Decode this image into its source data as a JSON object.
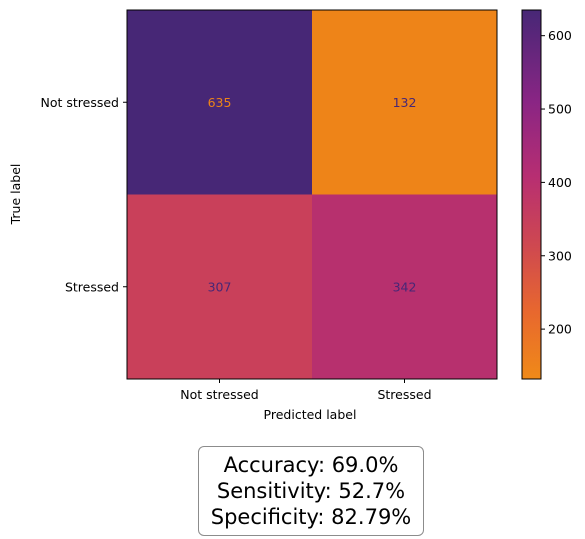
{
  "chart_data": {
    "type": "heatmap",
    "title": "",
    "xlabel": "Predicted label",
    "ylabel": "True label",
    "x_categories": [
      "Not stressed",
      "Stressed"
    ],
    "y_categories": [
      "Not stressed",
      "Stressed"
    ],
    "matrix": [
      [
        635,
        132
      ],
      [
        307,
        342
      ]
    ],
    "colormap": "inferno-like (orange low to dark purple high)",
    "colorbar": {
      "range": [
        132,
        635
      ],
      "ticks": [
        200,
        300,
        400,
        500,
        600
      ],
      "tick_labels": [
        "200",
        "300",
        "400",
        "500",
        "600"
      ]
    },
    "grid": false
  },
  "metrics": {
    "accuracy": "Accuracy: 69.0%",
    "sensitivity": "Sensitivity: 52.7%",
    "specificity": "Specificity: 82.79%"
  },
  "colors": {
    "cell_635": "#472776",
    "cell_132": "#ee8418",
    "cell_307": "#c9405a",
    "cell_342": "#b7306e",
    "annotation_on_dark": "#ee8418",
    "annotation_on_light": "#472776"
  }
}
